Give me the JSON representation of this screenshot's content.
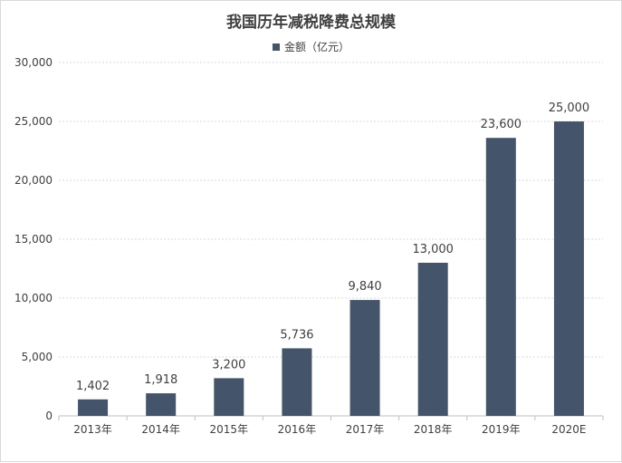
{
  "chart_data": {
    "type": "bar",
    "title": "我国历年减税降费总规模",
    "categories": [
      "2013年",
      "2014年",
      "2015年",
      "2016年",
      "2017年",
      "2018年",
      "2019年",
      "2020E"
    ],
    "series": [
      {
        "name": "金额（亿元）",
        "values": [
          1402,
          1918,
          3200,
          5736,
          9840,
          13000,
          23600,
          25000
        ],
        "labels": [
          "1,402",
          "1,918",
          "3,200",
          "5,736",
          "9,840",
          "13,000",
          "23,600",
          "25,000"
        ]
      }
    ],
    "ylim": [
      0,
      30000
    ],
    "yticks": [
      0,
      5000,
      10000,
      15000,
      20000,
      25000,
      30000
    ],
    "ytick_labels": [
      "0",
      "5,000",
      "10,000",
      "15,000",
      "20,000",
      "25,000",
      "30,000"
    ],
    "grid": true,
    "legend_position": "top",
    "bar_color": "#44546a"
  }
}
